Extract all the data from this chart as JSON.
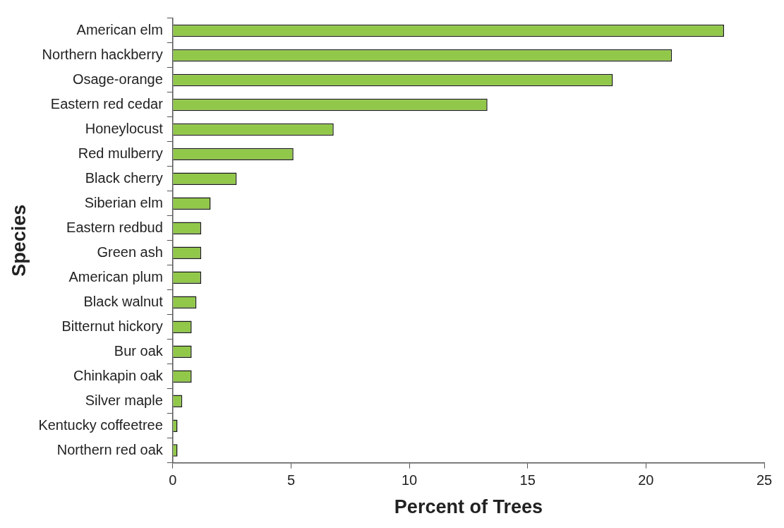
{
  "chart_data": {
    "type": "bar",
    "orientation": "horizontal",
    "xlabel": "Percent of Trees",
    "ylabel": "Species",
    "categories": [
      "American elm",
      "Northern hackberry",
      "Osage-orange",
      "Eastern red cedar",
      "Honeylocust",
      "Red mulberry",
      "Black cherry",
      "Siberian elm",
      "Eastern redbud",
      "Green ash",
      "American plum",
      "Black walnut",
      "Bitternut hickory",
      "Bur oak",
      "Chinkapin oak",
      "Silver maple",
      "Kentucky coffeetree",
      "Northern red oak"
    ],
    "values": [
      23.3,
      21.1,
      18.6,
      13.3,
      6.8,
      5.1,
      2.7,
      1.6,
      1.2,
      1.2,
      1.2,
      1.0,
      0.8,
      0.8,
      0.8,
      0.4,
      0.2,
      0.2
    ],
    "color": "#92c84a",
    "xlim": [
      0,
      25
    ],
    "xticks": [
      0,
      5,
      10,
      15,
      20,
      25
    ],
    "grid": false,
    "legend": false
  }
}
